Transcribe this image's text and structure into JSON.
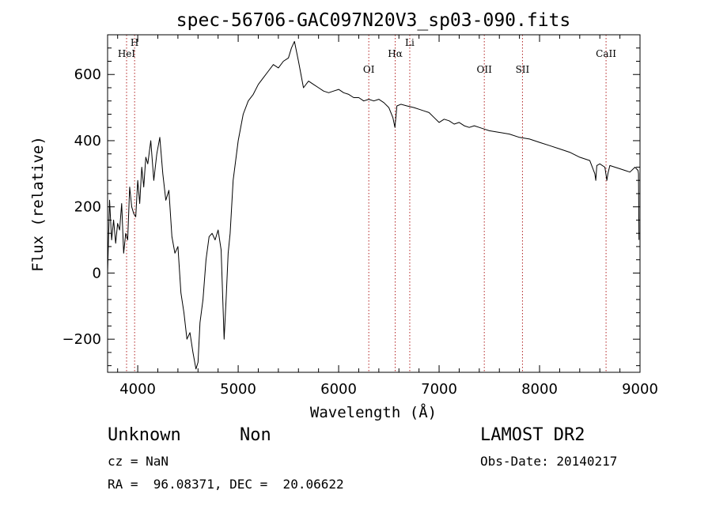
{
  "chart_data": {
    "type": "line",
    "title": "spec-56706-GAC097N20V3_sp03-090.fits",
    "xlabel": "Wavelength (Å)",
    "ylabel": "Flux (relative)",
    "xlim": [
      3700,
      9000
    ],
    "ylim": [
      -300,
      720
    ],
    "xticks": [
      4000,
      5000,
      6000,
      7000,
      8000,
      9000
    ],
    "yticks": [
      -200,
      0,
      200,
      400,
      600
    ],
    "grid": false,
    "series": [
      {
        "x": [
          3700,
          3720,
          3740,
          3760,
          3780,
          3800,
          3820,
          3840,
          3860,
          3880,
          3900,
          3920,
          3940,
          3960,
          3980,
          4000,
          4020,
          4040,
          4060,
          4080,
          4100,
          4130,
          4160,
          4190,
          4220,
          4250,
          4280,
          4310,
          4340,
          4370,
          4400,
          4430,
          4460,
          4490,
          4520,
          4550,
          4580,
          4600,
          4620,
          4650,
          4680,
          4710,
          4740,
          4770,
          4800,
          4830,
          4860,
          4880,
          4900,
          4920,
          4950,
          5000,
          5050,
          5100,
          5150,
          5200,
          5250,
          5300,
          5350,
          5400,
          5450,
          5500,
          5530,
          5560,
          5600,
          5650,
          5700,
          5750,
          5800,
          5850,
          5900,
          5950,
          6000,
          6050,
          6100,
          6150,
          6200,
          6250,
          6300,
          6350,
          6400,
          6450,
          6500,
          6540,
          6560,
          6580,
          6620,
          6680,
          6750,
          6800,
          6850,
          6900,
          6950,
          7000,
          7050,
          7100,
          7150,
          7200,
          7250,
          7300,
          7350,
          7400,
          7450,
          7500,
          7600,
          7700,
          7800,
          7900,
          8000,
          8100,
          8200,
          8300,
          8400,
          8500,
          8550,
          8560,
          8570,
          8600,
          8650,
          8670,
          8680,
          8700,
          8750,
          8800,
          8850,
          8900,
          8950,
          8980,
          8985,
          8990
        ],
        "y": [
          0,
          220,
          100,
          160,
          90,
          150,
          130,
          210,
          60,
          120,
          100,
          260,
          200,
          180,
          170,
          280,
          210,
          320,
          260,
          350,
          330,
          400,
          280,
          360,
          410,
          300,
          220,
          250,
          110,
          60,
          80,
          -60,
          -120,
          -200,
          -180,
          -240,
          -290,
          -270,
          -150,
          -80,
          40,
          110,
          120,
          100,
          130,
          70,
          -200,
          -80,
          60,
          120,
          280,
          400,
          480,
          520,
          540,
          570,
          590,
          610,
          630,
          620,
          640,
          650,
          680,
          700,
          640,
          560,
          580,
          570,
          560,
          550,
          545,
          550,
          555,
          545,
          540,
          530,
          530,
          520,
          525,
          520,
          525,
          515,
          500,
          470,
          440,
          505,
          510,
          505,
          500,
          495,
          490,
          485,
          470,
          455,
          465,
          460,
          450,
          455,
          445,
          440,
          445,
          440,
          435,
          430,
          425,
          420,
          410,
          405,
          395,
          385,
          375,
          365,
          350,
          340,
          300,
          280,
          325,
          330,
          320,
          280,
          300,
          325,
          320,
          315,
          310,
          305,
          320,
          310,
          300,
          100
        ]
      }
    ],
    "line_labels": [
      {
        "label": "HeI",
        "x": 3889
      },
      {
        "label": "H",
        "x": 3969
      },
      {
        "label": "OI",
        "x": 6300
      },
      {
        "label": "Hα",
        "x": 6563
      },
      {
        "label": "Li",
        "x": 6708
      },
      {
        "label": "OII",
        "x": 7450
      },
      {
        "label": "SII",
        "x": 7830
      },
      {
        "label": "CaII",
        "x": 8662
      }
    ]
  },
  "info": {
    "object_class": "Unknown",
    "object_subclass": "Non",
    "survey": "LAMOST DR2",
    "cz": "cz = NaN",
    "obs_date": "Obs-Date: 20140217",
    "coords": "RA =  96.08371, DEC =  20.06622"
  },
  "colors": {
    "spectrum": "#000000",
    "line_markers": "#b22222",
    "axes": "#000000"
  }
}
